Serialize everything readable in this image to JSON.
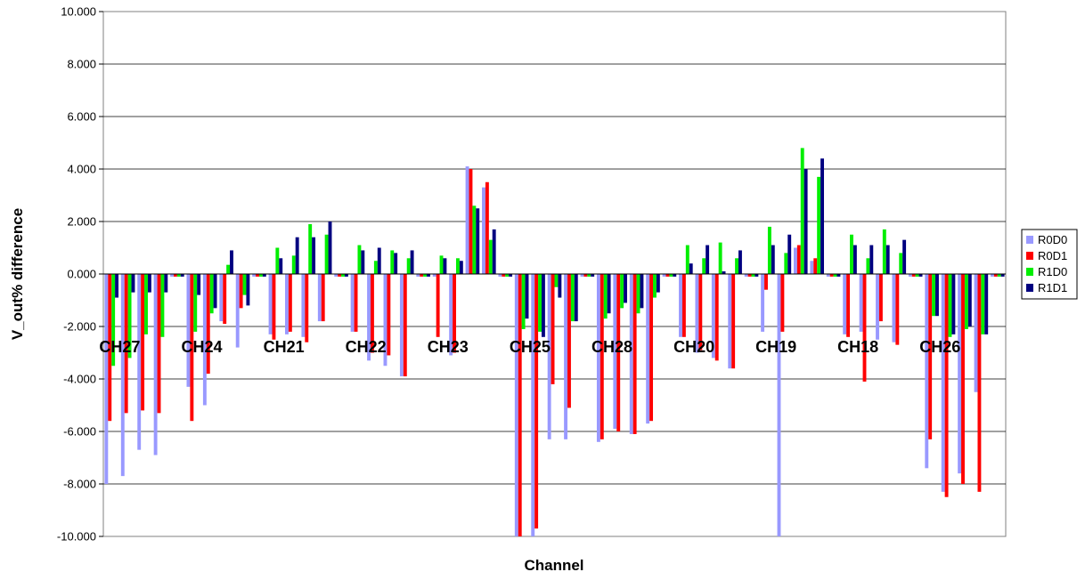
{
  "chart_data": {
    "type": "bar",
    "title": "",
    "xlabel": "Channel",
    "ylabel": "V_out% difference",
    "ylim": [
      -10,
      10
    ],
    "yticks": [
      "10.000",
      "8.000",
      "6.000",
      "4.000",
      "2.000",
      "0.000",
      "-2.000",
      "-4.000",
      "-6.000",
      "-8.000",
      "-10.000"
    ],
    "ytick_values": [
      10,
      8,
      6,
      4,
      2,
      0,
      -2,
      -4,
      -6,
      -8,
      -10
    ],
    "grid": "horizontal",
    "legend_position": "right",
    "category_labels": [
      "CH27",
      "CH24",
      "CH21",
      "CH22",
      "CH23",
      "CH25",
      "CH28",
      "CH20",
      "CH19",
      "CH18",
      "CH26"
    ],
    "points_per_channel": 5,
    "series": [
      {
        "name": "R0D0",
        "color": "#9999ff",
        "values": [
          -8.0,
          -7.7,
          -6.7,
          -6.9,
          -0.1,
          -4.3,
          -5.0,
          -1.8,
          -2.8,
          -0.1,
          -2.3,
          -2.3,
          -2.4,
          -1.8,
          -0.1,
          -2.2,
          -3.3,
          -3.5,
          -3.9,
          -0.1,
          -0.1,
          -3.1,
          4.1,
          3.3,
          -0.1,
          -10.0,
          -10.0,
          -6.3,
          -6.3,
          -0.1,
          -6.4,
          -5.9,
          -6.1,
          -5.7,
          -0.1,
          -2.4,
          -3.0,
          -3.2,
          -3.6,
          -0.1,
          -2.2,
          -10.0,
          1.0,
          0.5,
          -0.1,
          -2.3,
          -2.2,
          -2.5,
          -2.6,
          -0.1,
          -7.4,
          -8.3,
          -7.6,
          -4.5,
          -0.1
        ]
      },
      {
        "name": "R0D1",
        "color": "#ff0000",
        "values": [
          -5.6,
          -5.3,
          -5.2,
          -5.3,
          -0.1,
          -5.6,
          -3.8,
          -1.9,
          -1.3,
          -0.1,
          -2.5,
          -2.2,
          -2.6,
          -1.8,
          -0.1,
          -2.2,
          -3.0,
          -3.1,
          -3.9,
          -0.1,
          -2.4,
          -3.0,
          4.0,
          3.5,
          -0.1,
          -10.0,
          -9.7,
          -4.2,
          -5.1,
          -0.1,
          -6.3,
          -6.0,
          -6.1,
          -5.6,
          -0.1,
          -2.4,
          -2.9,
          -3.3,
          -3.6,
          -0.1,
          -0.6,
          -2.2,
          1.1,
          0.6,
          -0.1,
          -2.4,
          -4.1,
          -1.8,
          -2.7,
          -0.1,
          -6.3,
          -8.5,
          -8.0,
          -8.3,
          -0.1
        ]
      },
      {
        "name": "R1D0",
        "color": "#00ee00",
        "values": [
          -3.5,
          -3.2,
          -2.3,
          -2.4,
          -0.1,
          -2.2,
          -1.5,
          0.35,
          -0.8,
          -0.1,
          1.0,
          0.7,
          1.9,
          1.5,
          -0.1,
          1.1,
          0.5,
          0.9,
          0.6,
          -0.1,
          0.7,
          0.6,
          2.6,
          1.3,
          -0.1,
          -2.1,
          -2.2,
          -0.5,
          -1.8,
          -0.1,
          -1.7,
          -1.3,
          -1.5,
          -0.9,
          -0.1,
          1.1,
          0.6,
          1.2,
          0.6,
          -0.1,
          1.8,
          0.8,
          4.8,
          3.7,
          -0.1,
          1.5,
          0.6,
          1.7,
          0.8,
          -0.1,
          -1.6,
          -2.4,
          -2.1,
          -2.3,
          -0.1
        ]
      },
      {
        "name": "R1D1",
        "color": "#000080",
        "values": [
          -0.9,
          -0.7,
          -0.7,
          -0.7,
          -0.1,
          -0.8,
          -1.3,
          0.9,
          -1.2,
          -0.1,
          0.6,
          1.4,
          1.4,
          2.0,
          -0.1,
          0.9,
          1.0,
          0.8,
          0.9,
          -0.1,
          0.6,
          0.5,
          2.5,
          1.7,
          -0.1,
          -1.7,
          -2.4,
          -0.9,
          -1.8,
          -0.1,
          -1.5,
          -1.1,
          -1.3,
          -0.7,
          -0.1,
          0.4,
          1.1,
          0.1,
          0.9,
          -0.1,
          1.1,
          1.5,
          4.0,
          4.4,
          -0.1,
          1.1,
          1.1,
          1.1,
          1.3,
          -0.1,
          -1.6,
          -2.3,
          -2.0,
          -2.3,
          -0.1
        ]
      }
    ]
  }
}
